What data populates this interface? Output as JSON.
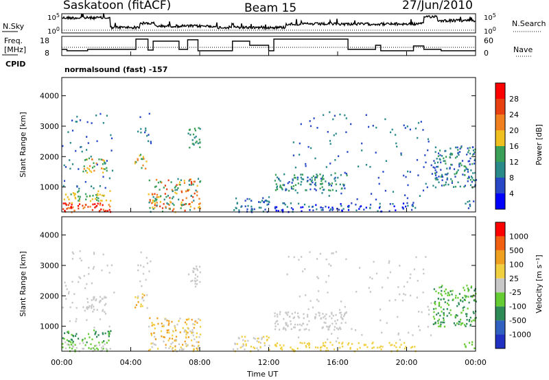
{
  "header": {
    "station": "Saskatoon (fitACF)",
    "beam": "Beam 15",
    "date": "27/Jun/2010",
    "mode": "normalsound (fast) -157"
  },
  "top_panels": {
    "nsky": {
      "label": "N.Sky",
      "ticks": [
        "10^5",
        "10^0"
      ],
      "right_ticks": [
        "10^5",
        "10^0"
      ],
      "right_label": "N.Search"
    },
    "freq": {
      "label_line1": "Freq.",
      "label_line2": "[MHz]",
      "ticks": [
        "18",
        "8"
      ],
      "right_ticks": [
        "60",
        "0"
      ],
      "right_label": "Nave"
    },
    "cpid_label": "CPID"
  },
  "chart_data": [
    {
      "type": "heatmap",
      "quantity": "Power",
      "ylabel": "Slant Range [km]",
      "ylim": [
        180,
        4600
      ],
      "yticks": [
        1000,
        2000,
        3000,
        4000
      ],
      "colorbar": {
        "label": "Power [dB]",
        "ticks": [
          4,
          8,
          12,
          16,
          20,
          24,
          28
        ],
        "colors": [
          "#0000ff",
          "#2848c8",
          "#2a8a8a",
          "#3aa058",
          "#f0c020",
          "#f08020",
          "#e84010",
          "#ff0000"
        ]
      }
    },
    {
      "type": "heatmap",
      "quantity": "Velocity",
      "ylabel": "Slant Range [km]",
      "ylim": [
        180,
        4600
      ],
      "yticks": [
        1000,
        2000,
        3000,
        4000
      ],
      "colorbar": {
        "label": "Velocity [m s⁻¹]",
        "ticks": [
          1000,
          500,
          100,
          25,
          -25,
          -100,
          -500,
          -1000
        ],
        "colors": [
          "#2030c0",
          "#3060c0",
          "#2e8b57",
          "#66cc33",
          "#c8c8c8",
          "#f0d040",
          "#f0a020",
          "#f06010",
          "#ff0000"
        ]
      }
    }
  ],
  "xaxis": {
    "label": "Time UT",
    "ticks": [
      "00:00",
      "04:00",
      "08:00",
      "12:00",
      "16:00",
      "20:00",
      "00:00"
    ]
  }
}
